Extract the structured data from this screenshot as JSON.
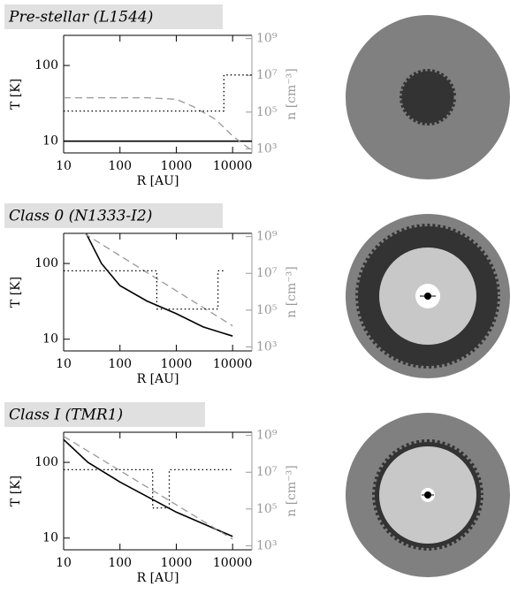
{
  "chart_data": [
    {
      "type": "line",
      "title": "Pre-stellar (L1544)",
      "xlabel": "R [AU]",
      "ylabel": "T [K]",
      "y2label": "n [cm⁻³]",
      "xlog": true,
      "ylog": true,
      "y2log": true,
      "xlim": [
        10,
        22000
      ],
      "xticks": [
        10,
        100,
        1000,
        10000
      ],
      "ylim": [
        7,
        250
      ],
      "yticks": [
        10,
        100
      ],
      "y2lim": [
        600,
        1500000000
      ],
      "y2ticks": [
        {
          "value": 1000,
          "label": "10³"
        },
        {
          "value": 100000,
          "label": "10⁵"
        },
        {
          "value": 10000000,
          "label": "10⁷"
        },
        {
          "value": 1000000000,
          "label": "10⁹"
        }
      ],
      "series": [
        {
          "color": "#000000",
          "dash": "solid",
          "axis": "y",
          "x": [
            10,
            22000
          ],
          "values": [
            10,
            10
          ]
        },
        {
          "color": "#999999",
          "dash": "dashed",
          "axis": "y2",
          "x": [
            10,
            300,
            1000,
            2000,
            5000,
            10000,
            22000
          ],
          "values": [
            600000,
            600000,
            500000,
            200000,
            40000,
            5000,
            800
          ]
        },
        {
          "color": "#000000",
          "dash": "dotted",
          "axis": "y",
          "x": [
            10,
            7000,
            7000,
            22000
          ],
          "values": [
            25,
            25,
            75,
            75
          ]
        }
      ]
    },
    {
      "type": "line",
      "title": "Class 0 (N1333-I2)",
      "xlabel": "R [AU]",
      "ylabel": "T [K]",
      "y2label": "n [cm⁻³]",
      "xlog": true,
      "ylog": true,
      "y2log": true,
      "xlim": [
        10,
        22000
      ],
      "xticks": [
        10,
        100,
        1000,
        10000
      ],
      "ylim": [
        7,
        250
      ],
      "yticks": [
        10,
        100
      ],
      "y2lim": [
        600,
        1500000000
      ],
      "y2ticks": [
        {
          "value": 1000,
          "label": "10³"
        },
        {
          "value": 100000,
          "label": "10⁵"
        },
        {
          "value": 10000000,
          "label": "10⁷"
        },
        {
          "value": 1000000000,
          "label": "10⁹"
        }
      ],
      "series": [
        {
          "color": "#000000",
          "dash": "solid",
          "axis": "y",
          "x": [
            25,
            47,
            100,
            300,
            1000,
            3000,
            10000
          ],
          "values": [
            250,
            100,
            51,
            32,
            21.7,
            14.5,
            11
          ]
        },
        {
          "color": "#999999",
          "dash": "dashed",
          "axis": "y2",
          "x": [
            23,
            10000
          ],
          "values": [
            1500000000,
            14000
          ]
        },
        {
          "color": "#000000",
          "dash": "dotted",
          "axis": "y",
          "x": [
            10,
            450,
            450,
            5500,
            5500,
            7500
          ],
          "values": [
            80,
            80,
            25,
            25,
            80,
            80
          ]
        }
      ]
    },
    {
      "type": "line",
      "title": "Class I (TMR1)",
      "xlabel": "R [AU]",
      "ylabel": "T [K]",
      "y2label": "n [cm⁻³]",
      "xlog": true,
      "ylog": true,
      "y2log": true,
      "xlim": [
        10,
        22000
      ],
      "xticks": [
        10,
        100,
        1000,
        10000
      ],
      "ylim": [
        7,
        250
      ],
      "yticks": [
        10,
        100
      ],
      "y2lim": [
        600,
        1500000000
      ],
      "y2ticks": [
        {
          "value": 1000,
          "label": "10³"
        },
        {
          "value": 100000,
          "label": "10⁵"
        },
        {
          "value": 10000000,
          "label": "10⁷"
        },
        {
          "value": 1000000000,
          "label": "10⁹"
        }
      ],
      "series": [
        {
          "color": "#000000",
          "dash": "solid",
          "axis": "y",
          "x": [
            10,
            27,
            100,
            1000,
            10000
          ],
          "values": [
            200,
            100,
            55,
            22,
            10.5
          ]
        },
        {
          "color": "#999999",
          "dash": "dashed",
          "axis": "y2",
          "x": [
            10,
            10000
          ],
          "values": [
            900000000,
            2300
          ]
        },
        {
          "color": "#000000",
          "dash": "dotted",
          "axis": "y",
          "x": [
            10,
            380,
            380,
            750,
            750,
            10000
          ],
          "values": [
            80,
            80,
            25,
            25,
            80,
            80
          ]
        }
      ]
    }
  ]
}
